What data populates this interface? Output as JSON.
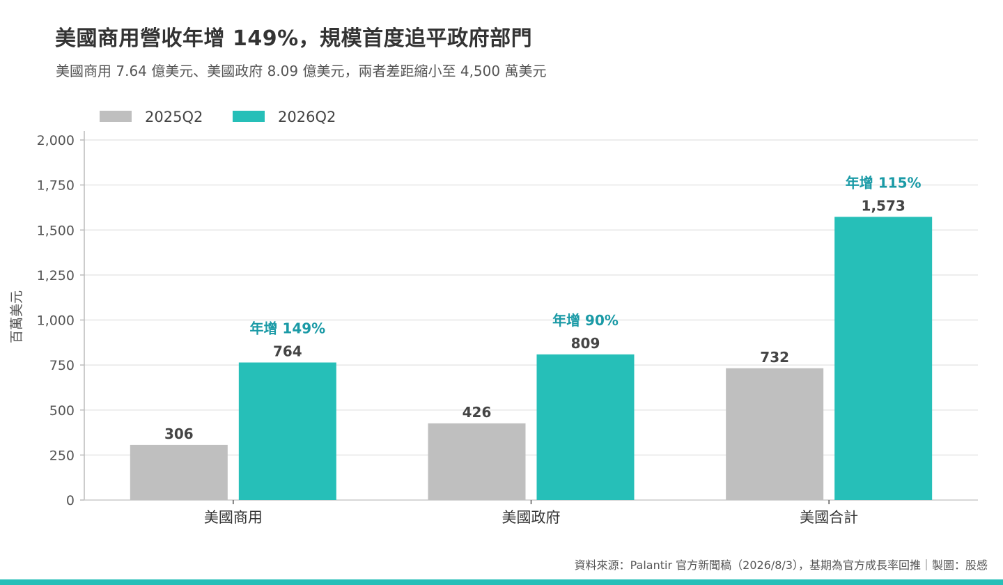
{
  "title": "美國商用營收年增 149%，規模首度追平政府部門",
  "subtitle": "美國商用 7.64 億美元、美國政府 8.09 億美元，兩者差距縮小至 4,500 萬美元",
  "footer": "資料來源：Palantir 官方新聞稿（2026/8/3），基期為官方成長率回推｜製圖：股感",
  "colors": {
    "series_2025": "#bfbfbf",
    "series_2026": "#26bfb8",
    "annotation": "#1a9aa6",
    "grid": "#e6e6e6",
    "axis": "#bbbbbb",
    "bottom_bar": "#26bfb8"
  },
  "chart_data": {
    "type": "bar",
    "categories": [
      "美國商用",
      "美國政府",
      "美國合計"
    ],
    "series": [
      {
        "name": "2025Q2",
        "values": [
          306,
          426,
          732
        ]
      },
      {
        "name": "2026Q2",
        "values": [
          764,
          809,
          1573
        ]
      }
    ],
    "value_labels": [
      [
        "306",
        "426",
        "732"
      ],
      [
        "764",
        "809",
        "1,573"
      ]
    ],
    "annotations": [
      "年增 149%",
      "年增 90%",
      "年增 115%"
    ],
    "ylabel": "百萬美元",
    "xlabel": "",
    "ylim": [
      0,
      2000
    ],
    "yticks": [
      0,
      250,
      500,
      750,
      1000,
      1250,
      1500,
      1750,
      2000
    ],
    "ytick_labels": [
      "0",
      "250",
      "500",
      "750",
      "1,000",
      "1,250",
      "1,500",
      "1,750",
      "2,000"
    ],
    "grid": true,
    "legend_position": "top-left"
  }
}
